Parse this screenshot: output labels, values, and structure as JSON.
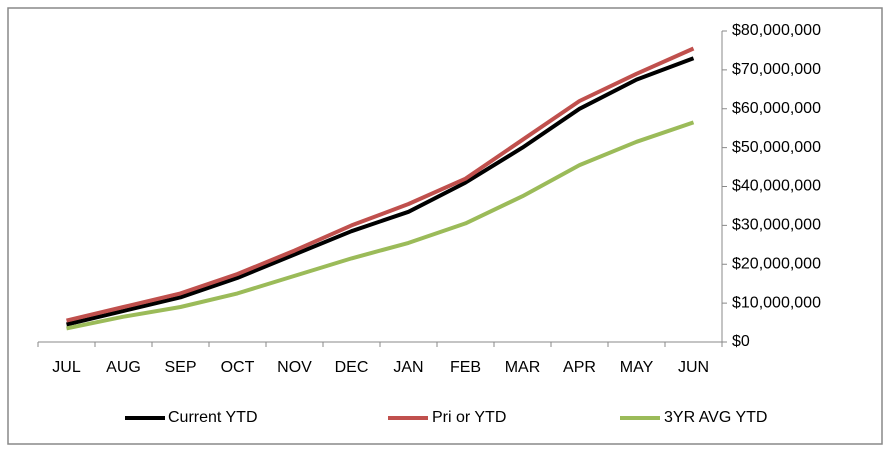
{
  "chart_data": {
    "type": "line",
    "categories": [
      "JUL",
      "AUG",
      "SEP",
      "OCT",
      "NOV",
      "DEC",
      "JAN",
      "FEB",
      "MAR",
      "APR",
      "MAY",
      "JUN"
    ],
    "series": [
      {
        "name": "Current YTD",
        "color": "#000000",
        "values": [
          4500000,
          8000000,
          11500000,
          16500000,
          22500000,
          28500000,
          33500000,
          41000000,
          50000000,
          60000000,
          67500000,
          73000000
        ]
      },
      {
        "name": "Pri or YTD",
        "color": "#c0504d",
        "values": [
          5500000,
          9000000,
          12500000,
          17500000,
          23500000,
          30000000,
          35500000,
          42000000,
          52000000,
          62000000,
          69000000,
          75500000
        ]
      },
      {
        "name": "3YR AVG YTD",
        "color": "#9bbb59",
        "values": [
          3500000,
          6500000,
          9000000,
          12500000,
          17000000,
          21500000,
          25500000,
          30500000,
          37500000,
          45500000,
          51500000,
          56500000
        ]
      }
    ],
    "ylim": [
      0,
      80000000
    ],
    "yticks": [
      {
        "value": 0,
        "label": "$0"
      },
      {
        "value": 10000000,
        "label": "$10,000,000"
      },
      {
        "value": 20000000,
        "label": "$20,000,000"
      },
      {
        "value": 30000000,
        "label": "$30,000,000"
      },
      {
        "value": 40000000,
        "label": "$40,000,000"
      },
      {
        "value": 50000000,
        "label": "$50,000,000"
      },
      {
        "value": 60000000,
        "label": "$60,000,000"
      },
      {
        "value": 70000000,
        "label": "$70,000,000"
      },
      {
        "value": 80000000,
        "label": "$80,000,000"
      }
    ],
    "legend": "bottom"
  }
}
